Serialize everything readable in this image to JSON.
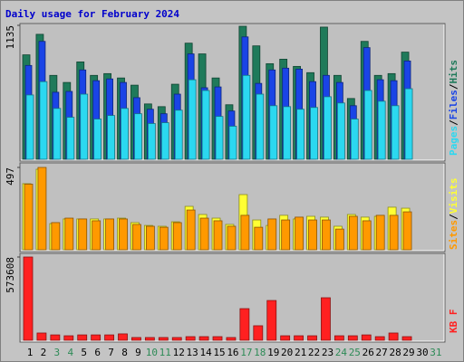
{
  "title": "Daily usage for February 2024",
  "chart_data": [
    {
      "type": "bar",
      "ylim": [
        0,
        1135
      ],
      "yticks": [
        1135
      ],
      "legend_separator": "/",
      "series": [
        {
          "name": "Hits",
          "color": "#1f7a5a",
          "values": [
            885,
            1059,
            711,
            651,
            825,
            711,
            726,
            689,
            628,
            469,
            446,
            636,
            984,
            893,
            689,
            462,
            1127,
            961,
            810,
            848,
            787,
            734,
            1120,
            711,
            515,
            999,
            711,
            726,
            908,
            null,
            null
          ]
        },
        {
          "name": "Files",
          "color": "#1a44e6",
          "values": [
            795,
            999,
            568,
            575,
            757,
            666,
            681,
            651,
            522,
            424,
            386,
            552,
            893,
            606,
            613,
            409,
            1037,
            643,
            757,
            772,
            764,
            658,
            711,
            651,
            454,
            946,
            674,
            666,
            833,
            null,
            null
          ]
        },
        {
          "name": "Pages",
          "color": "#2bd8f0",
          "values": [
            545,
            658,
            431,
            356,
            552,
            341,
            371,
            431,
            386,
            303,
            310,
            416,
            674,
            583,
            363,
            280,
            711,
            552,
            454,
            446,
            424,
            439,
            530,
            477,
            341,
            583,
            492,
            454,
            598,
            null,
            null
          ]
        }
      ]
    },
    {
      "type": "bar",
      "ylim": [
        0,
        497
      ],
      "yticks": [
        497
      ],
      "legend_separator": "/",
      "series": [
        {
          "name": "Visits",
          "color": "#ffff33",
          "values": [
            399,
            486,
            158,
            186,
            186,
            186,
            186,
            191,
            164,
            147,
            142,
            169,
            262,
            213,
            191,
            153,
            333,
            180,
            147,
            208,
            186,
            202,
            197,
            142,
            213,
            197,
            202,
            257,
            251,
            null,
            null
          ]
        },
        {
          "name": "Sites",
          "color": "#ff9900",
          "values": [
            396,
            497,
            164,
            191,
            186,
            175,
            186,
            186,
            153,
            142,
            136,
            164,
            240,
            191,
            175,
            142,
            208,
            136,
            186,
            180,
            197,
            180,
            180,
            125,
            202,
            175,
            208,
            208,
            229,
            null,
            null
          ]
        }
      ]
    },
    {
      "type": "bar",
      "ylim": [
        0,
        573608
      ],
      "yticks": [
        573608
      ],
      "categories": [
        "1",
        "2",
        "3",
        "4",
        "5",
        "6",
        "7",
        "8",
        "9",
        "10",
        "11",
        "12",
        "13",
        "14",
        "15",
        "16",
        "17",
        "18",
        "19",
        "20",
        "21",
        "22",
        "23",
        "24",
        "25",
        "26",
        "27",
        "28",
        "29",
        "30",
        "31"
      ],
      "category_colors": [
        "#000",
        "#000",
        "#2e8b57",
        "#2e8b57",
        "#000",
        "#000",
        "#000",
        "#000",
        "#000",
        "#2e8b57",
        "#2e8b57",
        "#000",
        "#000",
        "#000",
        "#000",
        "#000",
        "#2e8b57",
        "#2e8b57",
        "#000",
        "#000",
        "#000",
        "#000",
        "#000",
        "#2e8b57",
        "#2e8b57",
        "#000",
        "#000",
        "#000",
        "#000",
        "#000",
        "#2e8b57"
      ],
      "series": [
        {
          "name": "KB F",
          "color": "#ff2020",
          "values": [
            573608,
            50000,
            37000,
            31000,
            37000,
            37000,
            37000,
            44000,
            19000,
            19000,
            19000,
            19000,
            25000,
            25000,
            25000,
            19000,
            218000,
            100000,
            274000,
            31000,
            31000,
            31000,
            293000,
            31000,
            31000,
            37000,
            25000,
            50000,
            25000,
            null,
            null
          ]
        }
      ]
    }
  ]
}
